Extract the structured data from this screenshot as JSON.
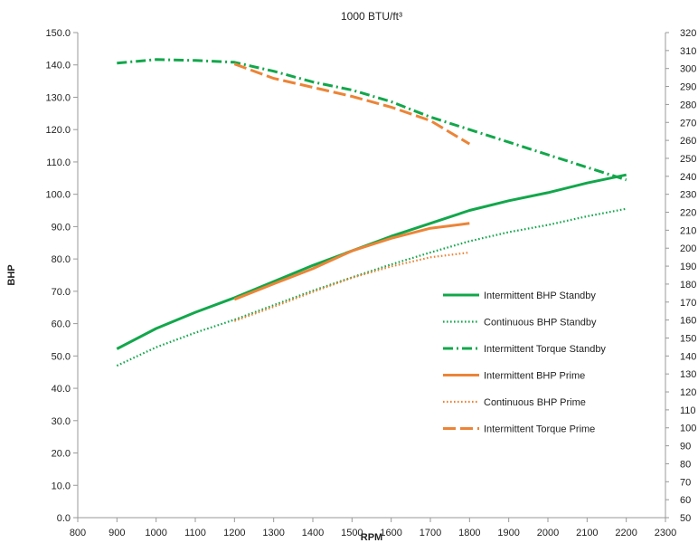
{
  "chart_data": {
    "type": "line",
    "title": "1000 BTU/ft³",
    "xlabel": "RPM",
    "ylabel": "BHP",
    "xlim": [
      800,
      2300
    ],
    "xticks": [
      800,
      900,
      1000,
      1100,
      1200,
      1300,
      1400,
      1500,
      1600,
      1700,
      1800,
      1900,
      2000,
      2100,
      2200,
      2300
    ],
    "ylim": [
      0,
      150
    ],
    "yticks": [
      0,
      10,
      20,
      30,
      40,
      50,
      60,
      70,
      80,
      90,
      100,
      110,
      120,
      130,
      140,
      150
    ],
    "y2lim": [
      50,
      320
    ],
    "y2ticks": [
      50,
      60,
      70,
      80,
      90,
      100,
      110,
      120,
      130,
      140,
      150,
      160,
      170,
      180,
      190,
      200,
      210,
      220,
      230,
      240,
      250,
      260,
      270,
      280,
      290,
      300,
      310,
      320
    ],
    "grid": false,
    "legend_position": "bottom-right",
    "series": [
      {
        "name": "Intermittent BHP Standby",
        "axis": "left",
        "color": "#12a74b",
        "dash": "solid",
        "x": [
          900,
          1000,
          1100,
          1200,
          1300,
          1400,
          1500,
          1600,
          1700,
          1800,
          1900,
          2000,
          2100,
          2200
        ],
        "y": [
          52.2,
          58.5,
          63.5,
          68,
          73,
          78,
          82.5,
          87,
          91,
          95,
          98,
          100.5,
          103.5,
          106
        ]
      },
      {
        "name": "Continuous BHP Standby",
        "axis": "left",
        "color": "#12a74b",
        "dash": "dotted",
        "x": [
          900,
          1000,
          1100,
          1200,
          1300,
          1400,
          1500,
          1600,
          1700,
          1800,
          1900,
          2000,
          2100,
          2200
        ],
        "y": [
          47,
          52.7,
          57.2,
          61.2,
          65.7,
          70.2,
          74.3,
          78.3,
          82,
          85.5,
          88.3,
          90.5,
          93.2,
          95.5
        ]
      },
      {
        "name": "Intermittent Torque Standby",
        "axis": "right",
        "color": "#12a74b",
        "dash": "dashdot",
        "x": [
          900,
          1000,
          1100,
          1200,
          1300,
          1400,
          1500,
          1600,
          1700,
          1800,
          1900,
          2000,
          2100,
          2200
        ],
        "y": [
          303,
          305,
          304.5,
          303.5,
          298.5,
          292.5,
          288,
          281.5,
          273,
          266,
          259,
          252,
          245,
          238
        ]
      },
      {
        "name": "Intermittent BHP Prime",
        "axis": "left",
        "color": "#ec8437",
        "dash": "solid",
        "x": [
          1200,
          1300,
          1400,
          1500,
          1600,
          1700,
          1800
        ],
        "y": [
          67.5,
          72.3,
          77,
          82.5,
          86.4,
          89.5,
          91
        ]
      },
      {
        "name": "Continuous BHP Prime",
        "axis": "left",
        "color": "#ec8437",
        "dash": "dotted",
        "x": [
          1200,
          1300,
          1400,
          1500,
          1600,
          1700,
          1800
        ],
        "y": [
          60.8,
          65.2,
          69.8,
          74.2,
          77.7,
          80.5,
          82
        ]
      },
      {
        "name": "Intermittent Torque Prime",
        "axis": "right",
        "color": "#ec8437",
        "dash": "dashdash",
        "x": [
          1200,
          1300,
          1400,
          1500,
          1600,
          1700,
          1800
        ],
        "y": [
          302.5,
          294.5,
          289.5,
          284.5,
          278.5,
          271,
          258
        ]
      }
    ]
  }
}
